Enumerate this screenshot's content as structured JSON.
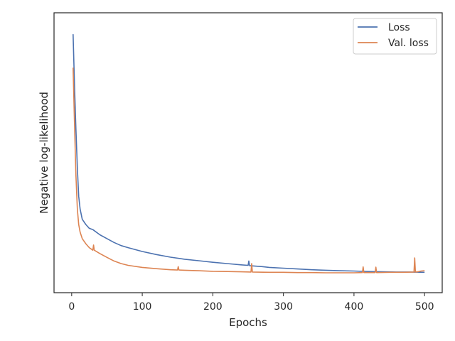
{
  "chart_data": {
    "type": "line",
    "xlabel": "Epochs",
    "ylabel": "Negative log-likelihood",
    "xlim": [
      -25,
      525
    ],
    "xticks": [
      0,
      100,
      200,
      300,
      400,
      500
    ],
    "ylim": [
      0,
      100
    ],
    "yticks_shown": false,
    "grid": false,
    "legend_position": "top-right",
    "series": [
      {
        "name": "Loss",
        "color": "#4c72b0",
        "x": [
          2,
          4,
          6,
          8,
          10,
          12,
          15,
          20,
          25,
          30,
          40,
          50,
          60,
          70,
          80,
          100,
          120,
          140,
          160,
          180,
          200,
          220,
          240,
          250,
          251,
          252,
          260,
          270,
          280,
          300,
          320,
          340,
          360,
          380,
          400,
          420,
          440,
          460,
          480,
          500
        ],
        "y": [
          95,
          75,
          58,
          43,
          32,
          27,
          23,
          21,
          19.5,
          19,
          17,
          15.5,
          14,
          12.8,
          12,
          10.5,
          9.3,
          8.3,
          7.5,
          6.9,
          6.3,
          5.8,
          5.3,
          5.1,
          6.8,
          5.0,
          4.8,
          4.6,
          4.3,
          4.0,
          3.7,
          3.4,
          3.2,
          3.0,
          2.9,
          2.7,
          2.6,
          2.5,
          2.5,
          2.4
        ]
      },
      {
        "name": "Val. loss",
        "color": "#dd8452",
        "x": [
          2,
          4,
          6,
          8,
          10,
          12,
          15,
          20,
          25,
          30,
          31,
          32,
          40,
          50,
          60,
          70,
          80,
          100,
          120,
          140,
          150,
          151,
          152,
          160,
          180,
          200,
          220,
          240,
          254,
          255,
          256,
          280,
          300,
          320,
          340,
          360,
          380,
          400,
          412,
          413,
          414,
          430,
          431,
          432,
          450,
          470,
          485,
          486,
          487,
          490,
          495,
          500
        ],
        "y": [
          82,
          60,
          40,
          27,
          21,
          18,
          15.5,
          13.5,
          12,
          11,
          13,
          11,
          9.7,
          8.2,
          6.8,
          5.8,
          5.1,
          4.3,
          3.8,
          3.4,
          3.3,
          4.6,
          3.3,
          3.2,
          3.0,
          2.8,
          2.7,
          2.6,
          2.5,
          5.8,
          2.5,
          2.4,
          2.4,
          2.3,
          2.3,
          2.2,
          2.2,
          2.2,
          2.3,
          4.5,
          2.3,
          2.3,
          4.4,
          2.3,
          2.4,
          2.4,
          2.5,
          8.0,
          2.5,
          2.6,
          2.9,
          3.0
        ]
      }
    ]
  }
}
